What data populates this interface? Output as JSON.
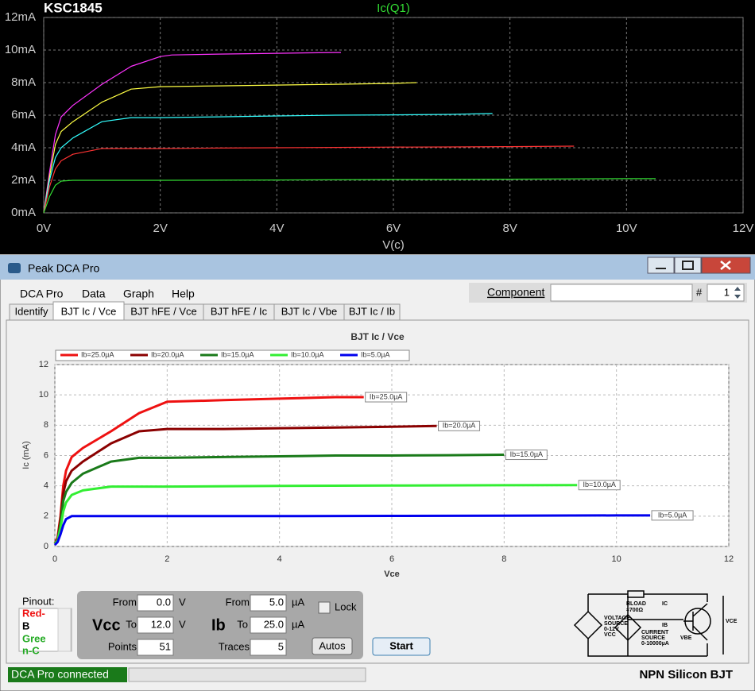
{
  "chart_data": [
    {
      "type": "line",
      "title": "KSC1845",
      "subtitle": "Ic(Q1)",
      "xlabel": "V(c)",
      "xlim": [
        0,
        12
      ],
      "ylim": [
        0,
        12
      ],
      "grid": true,
      "xticks": [
        {
          "value": 0,
          "label": "0V"
        },
        {
          "value": 2,
          "label": "2V"
        },
        {
          "value": 4,
          "label": "4V"
        },
        {
          "value": 6,
          "label": "6V"
        },
        {
          "value": 8,
          "label": "8V"
        },
        {
          "value": 10,
          "label": "10V"
        },
        {
          "value": 12,
          "label": "12V"
        }
      ],
      "yticks": [
        {
          "value": 0,
          "label": "0mA"
        },
        {
          "value": 2,
          "label": "2mA"
        },
        {
          "value": 4,
          "label": "4mA"
        },
        {
          "value": 6,
          "label": "6mA"
        },
        {
          "value": 8,
          "label": "8mA"
        },
        {
          "value": 10,
          "label": "10mA"
        },
        {
          "value": 12,
          "label": "12mA"
        }
      ],
      "series": [
        {
          "color": "#ff33ff",
          "x": [
            0,
            0.1,
            0.2,
            0.3,
            0.5,
            1,
            1.5,
            2,
            2.2,
            3,
            4,
            5,
            5.1
          ],
          "values": [
            0,
            2.5,
            4.8,
            5.9,
            6.6,
            7.9,
            9,
            9.6,
            9.7,
            9.75,
            9.8,
            9.85,
            9.85
          ]
        },
        {
          "color": "#ffff44",
          "x": [
            0,
            0.1,
            0.2,
            0.3,
            0.5,
            1,
            1.5,
            2,
            3,
            4,
            5,
            6,
            6.4
          ],
          "values": [
            0,
            2.2,
            4.2,
            5,
            5.6,
            6.8,
            7.6,
            7.75,
            7.8,
            7.85,
            7.9,
            7.95,
            8
          ]
        },
        {
          "color": "#33ffff",
          "x": [
            0,
            0.1,
            0.2,
            0.3,
            0.5,
            1,
            1.5,
            2,
            3,
            4,
            5,
            6,
            7,
            7.7
          ],
          "values": [
            0,
            2,
            3.4,
            4,
            4.6,
            5.6,
            5.85,
            5.85,
            5.9,
            5.95,
            6,
            6.02,
            6.05,
            6.1
          ]
        },
        {
          "color": "#ff3333",
          "x": [
            0,
            0.1,
            0.2,
            0.3,
            0.5,
            1,
            1.5,
            2,
            3,
            4,
            5,
            6,
            7,
            8,
            9.1
          ],
          "values": [
            0,
            1.6,
            2.7,
            3.2,
            3.6,
            3.95,
            3.95,
            3.95,
            3.98,
            4,
            4.02,
            4.04,
            4.05,
            4.07,
            4.1
          ]
        },
        {
          "color": "#33dd33",
          "x": [
            0,
            0.1,
            0.2,
            0.3,
            0.5,
            1,
            2,
            4,
            6,
            8,
            10,
            10.5
          ],
          "values": [
            0,
            1,
            1.7,
            1.95,
            2,
            2,
            2,
            2.02,
            2.05,
            2.07,
            2.1,
            2.1
          ]
        }
      ]
    },
    {
      "type": "line",
      "title": "BJT Ic / Vce",
      "xlabel": "Vce",
      "ylabel": "Ic (mA)",
      "xlim": [
        0,
        12
      ],
      "ylim": [
        0,
        12
      ],
      "grid": true,
      "xticks": [
        0,
        2,
        4,
        6,
        8,
        10,
        12
      ],
      "yticks": [
        0,
        2,
        4,
        6,
        8,
        10,
        12
      ],
      "series": [
        {
          "name": "Ib=25.0µA",
          "color": "#ee1111",
          "x": [
            0,
            0.05,
            0.1,
            0.15,
            0.2,
            0.3,
            0.5,
            1,
            1.5,
            2,
            3,
            4,
            5,
            5.5
          ],
          "values": [
            0.2,
            0.6,
            2,
            4,
            5,
            5.9,
            6.5,
            7.6,
            8.8,
            9.55,
            9.65,
            9.75,
            9.85,
            9.85
          ]
        },
        {
          "name": "Ib=20.0µA",
          "color": "#8b0000",
          "x": [
            0,
            0.05,
            0.1,
            0.15,
            0.2,
            0.3,
            0.5,
            1,
            1.5,
            2,
            3,
            4,
            5,
            6,
            6.8
          ],
          "values": [
            0.2,
            0.5,
            1.8,
            3.5,
            4.3,
            5,
            5.6,
            6.8,
            7.6,
            7.75,
            7.75,
            7.8,
            7.85,
            7.9,
            7.95
          ]
        },
        {
          "name": "Ib=15.0µA",
          "color": "#1a7a1a",
          "x": [
            0,
            0.05,
            0.1,
            0.15,
            0.2,
            0.3,
            0.5,
            1,
            1.5,
            2,
            3,
            4,
            5,
            6,
            7,
            8
          ],
          "values": [
            0.2,
            0.4,
            1.5,
            3,
            3.6,
            4.2,
            4.8,
            5.6,
            5.85,
            5.85,
            5.9,
            5.95,
            6,
            6,
            6.02,
            6.05
          ]
        },
        {
          "name": "Ib=10.0µA",
          "color": "#33ee33",
          "x": [
            0,
            0.05,
            0.1,
            0.15,
            0.2,
            0.3,
            0.5,
            1,
            1.5,
            2,
            4,
            6,
            8,
            9.3
          ],
          "values": [
            0.2,
            0.4,
            1.2,
            2.3,
            2.9,
            3.4,
            3.7,
            3.95,
            3.95,
            3.95,
            4,
            4.02,
            4.04,
            4.05
          ]
        },
        {
          "name": "Ib=5.0µA",
          "color": "#0000ee",
          "x": [
            0,
            0.05,
            0.1,
            0.15,
            0.2,
            0.3,
            0.5,
            1,
            2,
            4,
            6,
            8,
            10,
            10.6
          ],
          "values": [
            0.1,
            0.3,
            0.8,
            1.4,
            1.8,
            2,
            2,
            2,
            2,
            2,
            2.02,
            2.03,
            2.05,
            2.05
          ]
        }
      ]
    }
  ],
  "app": {
    "title": "Peak DCA Pro",
    "menu": [
      "DCA Pro",
      "Data",
      "Graph",
      "Help"
    ],
    "component": "Component",
    "hash": "#",
    "count": "1",
    "tabs": [
      "Identify",
      "BJT Ic / Vce",
      "BJT hFE / Vce",
      "BJT hFE / Ic",
      "BJT Ic / Vbe",
      "BJT Ic / Ib"
    ],
    "pinout": [
      "Pinout:",
      "Red-",
      "B",
      "Gree",
      "n-C"
    ],
    "vcc": {
      "name": "Vcc",
      "from_label": "From",
      "from": "0.0",
      "to_label": "To",
      "to": "12.0",
      "unit": "V",
      "points_label": "Points",
      "points": "51"
    },
    "ib": {
      "name": "Ib",
      "from_label": "From",
      "from": "5.0",
      "to_label": "To",
      "to": "25.0",
      "unit": "µA",
      "traces_label": "Traces",
      "traces": "5"
    },
    "lock": "Lock",
    "autos": "Autos",
    "start": "Start",
    "circuit": {
      "rload": "RLOAD",
      "rval": "≈700Ω",
      "ic": "IC",
      "ib": "IB",
      "vbe": "VBE",
      "vce": "VCE",
      "voltage_source": [
        "VOLTAGE",
        "SOURCE",
        "0-12V",
        "VCC"
      ],
      "current_source": [
        "CURRENT",
        "SOURCE",
        "0-10000µA"
      ]
    },
    "status": "DCA Pro connected",
    "device": "NPN Silicon BJT"
  }
}
